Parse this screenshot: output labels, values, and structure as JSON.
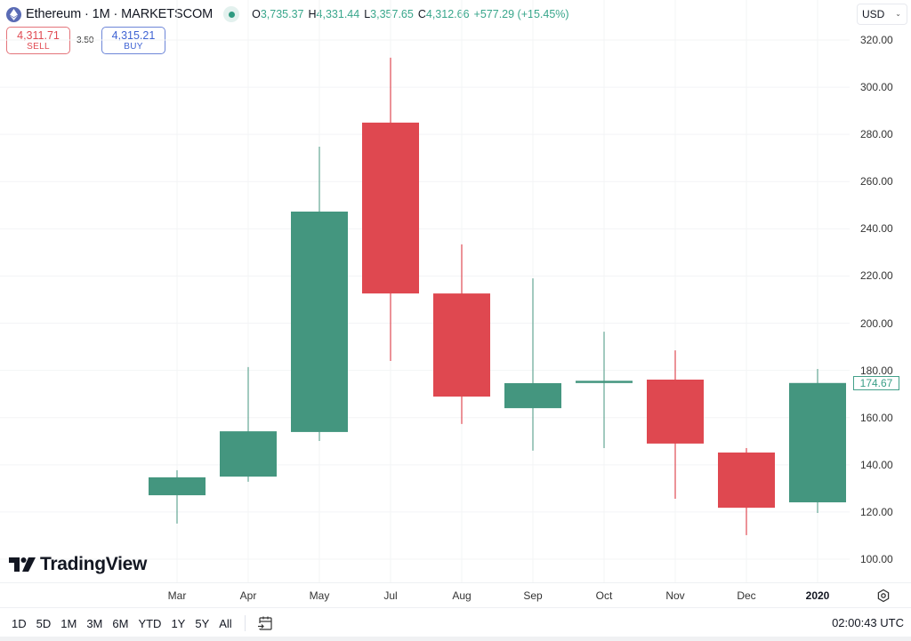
{
  "header": {
    "logo_icon": "ethereum-logo-icon",
    "title": "Ethereum · 1M · MARKETSCOM",
    "status": "market-open-dot",
    "ohlc": {
      "o_label": "O",
      "o_value": "3,735.37",
      "h_label": "H",
      "h_value": "4,331.44",
      "l_label": "L",
      "l_value": "3,357.65",
      "c_label": "C",
      "c_value": "4,312.66",
      "change": "+577.29 (+15.45%)"
    },
    "currency": "USD"
  },
  "trade": {
    "sell_price": "4,311.71",
    "sell_label": "SELL",
    "spread": "3.50",
    "buy_price": "4,315.21",
    "buy_label": "BUY"
  },
  "colors": {
    "up": "#44967f",
    "down": "#df4850",
    "grid": "#f3f4f6",
    "last_price": "#3a9f87"
  },
  "chart_data": {
    "type": "candlestick",
    "title": "Ethereum · 1M · MARKETSCOM",
    "xlabel": "",
    "ylabel": "USD",
    "ylim": [
      100,
      320
    ],
    "y_ticks": [
      "320.00",
      "300.00",
      "280.00",
      "260.00",
      "240.00",
      "220.00",
      "200.00",
      "180.00",
      "160.00",
      "140.00",
      "120.00",
      "100.00"
    ],
    "categories": [
      "Mar",
      "Apr",
      "May",
      "Jul",
      "Aug",
      "Sep",
      "Oct",
      "Nov",
      "Dec",
      "2020"
    ],
    "series": [
      {
        "name": "open",
        "values": [
          127.1,
          135.0,
          153.9,
          285.0,
          212.6,
          164.0,
          175.0,
          176.1,
          145.2,
          124.1
        ]
      },
      {
        "name": "high",
        "values": [
          137.7,
          181.4,
          274.8,
          312.5,
          233.4,
          219.0,
          196.4,
          188.5,
          147.1,
          180.6
        ]
      },
      {
        "name": "low",
        "values": [
          115.1,
          132.8,
          150.1,
          184.0,
          157.3,
          146.0,
          147.1,
          125.6,
          110.2,
          119.6
        ]
      },
      {
        "name": "close",
        "values": [
          134.7,
          154.2,
          247.3,
          212.6,
          168.9,
          174.6,
          175.6,
          149.0,
          121.8,
          174.67
        ]
      }
    ],
    "last_price": "174.67",
    "grid": true,
    "legend": "none"
  },
  "xaxis": {
    "labels": [
      {
        "text": "Mar",
        "bold": false
      },
      {
        "text": "Apr",
        "bold": false
      },
      {
        "text": "May",
        "bold": false
      },
      {
        "text": "Jul",
        "bold": false
      },
      {
        "text": "Aug",
        "bold": false
      },
      {
        "text": "Sep",
        "bold": false
      },
      {
        "text": "Oct",
        "bold": false
      },
      {
        "text": "Nov",
        "bold": false
      },
      {
        "text": "Dec",
        "bold": false
      },
      {
        "text": "2020",
        "bold": true
      }
    ],
    "settings_icon": "chart-settings-icon"
  },
  "brand": {
    "name": "TradingView"
  },
  "footer": {
    "ranges": [
      "1D",
      "5D",
      "1M",
      "3M",
      "6M",
      "YTD",
      "1Y",
      "5Y",
      "All"
    ],
    "goto_icon": "go-to-date-icon",
    "clock": "02:00:43 UTC"
  }
}
